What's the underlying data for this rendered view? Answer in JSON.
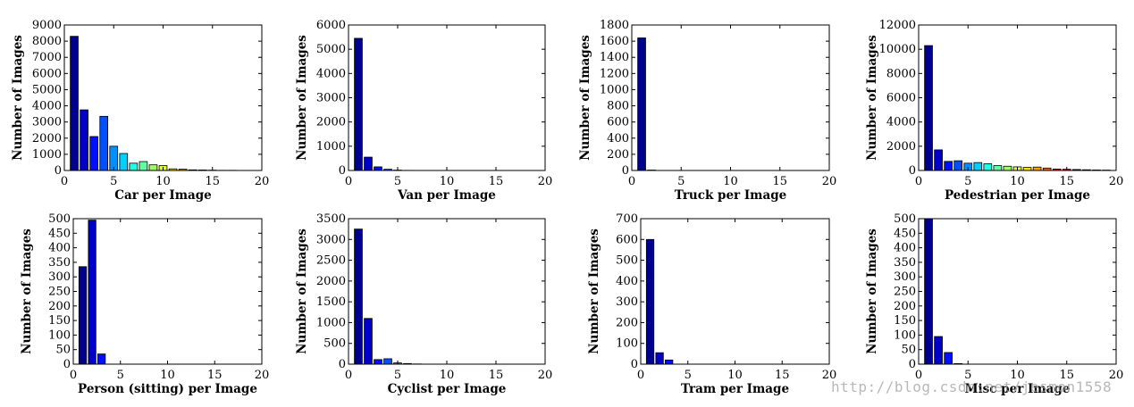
{
  "chart_data": [
    {
      "type": "bar",
      "xlabel": "Car per Image",
      "ylabel": "Number of Images",
      "xlim": [
        0,
        20
      ],
      "ylim": [
        0,
        9000
      ],
      "xticks": [
        0,
        5,
        10,
        15,
        20
      ],
      "yticks": [
        0,
        1000,
        2000,
        3000,
        4000,
        5000,
        6000,
        7000,
        8000,
        9000
      ],
      "x": [
        1,
        2,
        3,
        4,
        5,
        6,
        7,
        8,
        9,
        10,
        11,
        12,
        13,
        14,
        15,
        16,
        17,
        18,
        19
      ],
      "values": [
        8300,
        3750,
        2100,
        3350,
        1500,
        1050,
        450,
        550,
        350,
        300,
        100,
        80,
        40,
        30,
        20,
        10,
        10,
        5,
        5
      ]
    },
    {
      "type": "bar",
      "xlabel": "Van per Image",
      "ylabel": "Number of Images",
      "xlim": [
        0,
        20
      ],
      "ylim": [
        0,
        6000
      ],
      "xticks": [
        0,
        5,
        10,
        15,
        20
      ],
      "yticks": [
        0,
        1000,
        2000,
        3000,
        4000,
        5000,
        6000
      ],
      "x": [
        1,
        2,
        3,
        4,
        5,
        6
      ],
      "values": [
        5450,
        550,
        150,
        50,
        15,
        5
      ]
    },
    {
      "type": "bar",
      "xlabel": "Truck per Image",
      "ylabel": "Number of Images",
      "xlim": [
        0,
        20
      ],
      "ylim": [
        0,
        1800
      ],
      "xticks": [
        0,
        5,
        10,
        15,
        20
      ],
      "yticks": [
        0,
        200,
        400,
        600,
        800,
        1000,
        1200,
        1400,
        1600,
        1800
      ],
      "x": [
        1,
        2
      ],
      "values": [
        1640,
        5
      ]
    },
    {
      "type": "bar",
      "xlabel": "Pedestrian per Image",
      "ylabel": "Number of Images",
      "xlim": [
        0,
        20
      ],
      "ylim": [
        0,
        12000
      ],
      "xticks": [
        0,
        5,
        10,
        15,
        20
      ],
      "yticks": [
        0,
        2000,
        4000,
        6000,
        8000,
        10000,
        12000
      ],
      "x": [
        1,
        2,
        3,
        4,
        5,
        6,
        7,
        8,
        9,
        10,
        11,
        12,
        13,
        14,
        15,
        16,
        17,
        18,
        19
      ],
      "values": [
        10300,
        1700,
        750,
        800,
        600,
        650,
        550,
        400,
        350,
        300,
        250,
        280,
        200,
        120,
        100,
        80,
        60,
        40,
        30
      ]
    },
    {
      "type": "bar",
      "xlabel": "Person (sitting) per Image",
      "ylabel": "Number of Images",
      "xlim": [
        0,
        20
      ],
      "ylim": [
        0,
        500
      ],
      "xticks": [
        0,
        5,
        10,
        15,
        20
      ],
      "yticks": [
        0,
        50,
        100,
        150,
        200,
        250,
        300,
        350,
        400,
        450,
        500
      ],
      "x": [
        1,
        2,
        3
      ],
      "values": [
        335,
        495,
        35
      ]
    },
    {
      "type": "bar",
      "xlabel": "Cyclist per Image",
      "ylabel": "Number of Images",
      "xlim": [
        0,
        20
      ],
      "ylim": [
        0,
        3500
      ],
      "xticks": [
        0,
        5,
        10,
        15,
        20
      ],
      "yticks": [
        0,
        500,
        1000,
        1500,
        2000,
        2500,
        3000,
        3500
      ],
      "x": [
        1,
        2,
        3,
        4,
        5,
        6,
        7
      ],
      "values": [
        3250,
        1100,
        110,
        130,
        30,
        15,
        5
      ]
    },
    {
      "type": "bar",
      "xlabel": "Tram per Image",
      "ylabel": "Number of Images",
      "xlim": [
        0,
        20
      ],
      "ylim": [
        0,
        700
      ],
      "xticks": [
        0,
        5,
        10,
        15,
        20
      ],
      "yticks": [
        0,
        100,
        200,
        300,
        400,
        500,
        600,
        700
      ],
      "x": [
        1,
        2,
        3
      ],
      "values": [
        600,
        55,
        20
      ]
    },
    {
      "type": "bar",
      "xlabel": "Misc per Image",
      "ylabel": "Number of Images",
      "xlim": [
        0,
        20
      ],
      "ylim": [
        0,
        500
      ],
      "xticks": [
        0,
        5,
        10,
        15,
        20
      ],
      "yticks": [
        0,
        50,
        100,
        150,
        200,
        250,
        300,
        350,
        400,
        450,
        500
      ],
      "x": [
        1,
        2,
        3,
        4
      ],
      "values": [
        500,
        95,
        40,
        2
      ]
    }
  ],
  "colormap": [
    "#00008f",
    "#0000c8",
    "#0010ff",
    "#0050ff",
    "#0090ff",
    "#00d0ff",
    "#20ffdf",
    "#60ff9f",
    "#a0ff60",
    "#dfff20",
    "#ffdf00",
    "#ffa000",
    "#ff6000",
    "#ff2000",
    "#df0000",
    "#a00000",
    "#800000",
    "#700000",
    "#600000"
  ],
  "watermark": "http://blog.csdn.net/jesmon1558"
}
